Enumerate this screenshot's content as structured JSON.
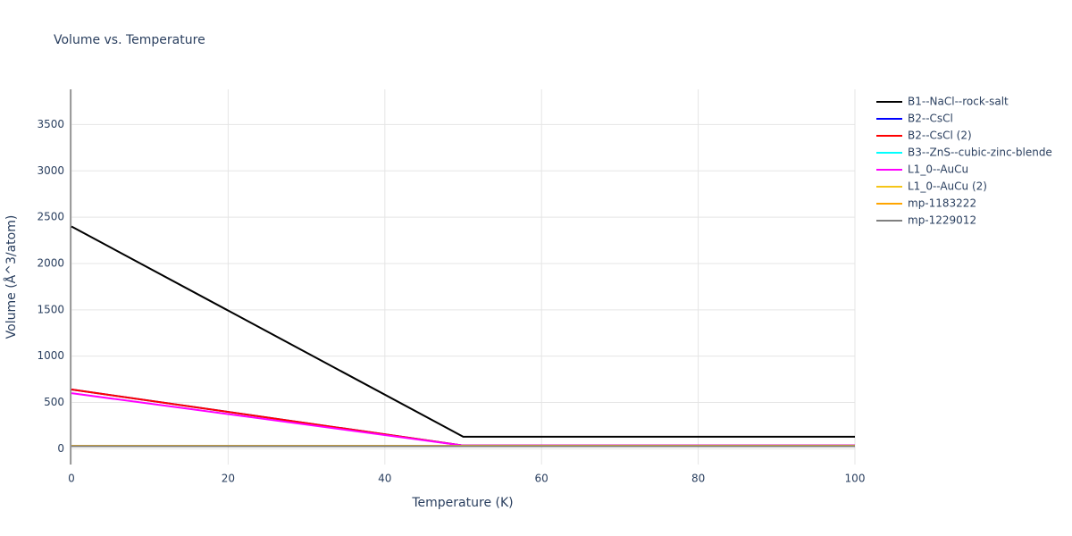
{
  "chart_data": {
    "type": "line",
    "title": "Volume vs. Temperature",
    "x_label": "Temperature (K)",
    "y_label": "Volume (Å^3/atom)",
    "x": [
      0,
      50,
      100
    ],
    "series": [
      {
        "name": "B1--NaCl--rock-salt",
        "color": "#000000",
        "values": [
          2400,
          130,
          130
        ]
      },
      {
        "name": "B2--CsCl",
        "color": "#0000ff",
        "values": [
          640,
          35,
          35
        ]
      },
      {
        "name": "B2--CsCl (2)",
        "color": "#ff0000",
        "values": [
          640,
          35,
          35
        ]
      },
      {
        "name": "B3--ZnS--cubic-zinc-blende",
        "color": "#00ffff",
        "values": [
          30,
          30,
          30
        ]
      },
      {
        "name": "L1_0--AuCu",
        "color": "#ff00ff",
        "values": [
          600,
          35,
          35
        ]
      },
      {
        "name": "L1_0--AuCu (2)",
        "color": "#f5c518",
        "values": [
          32,
          32,
          32
        ]
      },
      {
        "name": "mp-1183222",
        "color": "#ffa500",
        "values": [
          30,
          30,
          30
        ]
      },
      {
        "name": "mp-1229012",
        "color": "#808080",
        "values": [
          28,
          28,
          28
        ]
      }
    ],
    "xlim": [
      0,
      100
    ],
    "xticks": [
      0,
      20,
      40,
      60,
      80,
      100
    ],
    "ylim": [
      -170,
      3880
    ],
    "yticks": [
      0,
      500,
      1000,
      1500,
      2000,
      2500,
      3000,
      3500
    ],
    "grid": true,
    "legend": "right"
  }
}
